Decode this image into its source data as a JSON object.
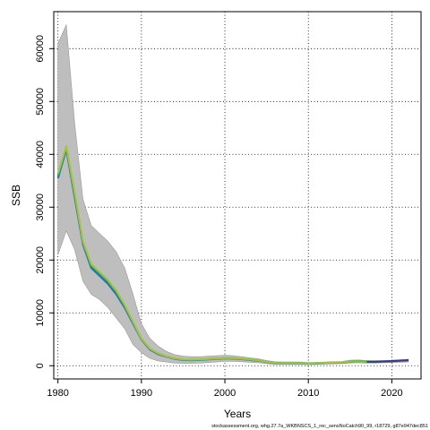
{
  "chart_data": {
    "type": "line",
    "title": "",
    "xlabel": "Years",
    "ylabel": "SSB",
    "xlim": [
      1979.5,
      2023.5
    ],
    "ylim": [
      -2500,
      67000
    ],
    "xticks": [
      1980,
      1990,
      2000,
      2010,
      2020
    ],
    "yticks": [
      0,
      10000,
      20000,
      30000,
      40000,
      50000,
      60000
    ],
    "grid": true,
    "grid_style": "dotted",
    "colors": {
      "band": "#bebebe",
      "band_edge": "#9a9a9a",
      "series": [
        "#1f6fb4",
        "#2ca36b",
        "#a8c23a",
        "#7fbf3a",
        "#3a3a8c"
      ],
      "axes": "#000000"
    },
    "band": {
      "name": "",
      "x": [
        1980,
        1981,
        1982,
        1983,
        1984,
        1985,
        1986,
        1987,
        1988,
        1989,
        1990,
        1991,
        1992,
        1993,
        1994,
        1995,
        1996,
        1997,
        1998,
        1999,
        2000,
        2001,
        2002,
        2003,
        2004,
        2005,
        2006,
        2007,
        2008,
        2009,
        2010,
        2011,
        2012,
        2013,
        2014,
        2015,
        2016,
        2017,
        2018,
        2019,
        2020,
        2021,
        2022
      ],
      "upper": [
        61000,
        64500,
        46000,
        31500,
        26500,
        25000,
        23500,
        21500,
        18500,
        13500,
        8000,
        5200,
        3700,
        2700,
        2100,
        1800,
        1700,
        1700,
        1800,
        1900,
        2000,
        1900,
        1700,
        1500,
        1300,
        1000,
        750,
        700,
        700,
        700,
        600,
        650,
        700,
        750,
        800,
        1050,
        1100,
        1000,
        950,
        1000,
        1050,
        1150,
        1250
      ],
      "lower": [
        21000,
        25500,
        22000,
        16000,
        13500,
        12500,
        11000,
        9000,
        7000,
        4000,
        2500,
        1400,
        900,
        700,
        500,
        450,
        450,
        500,
        600,
        700,
        800,
        800,
        750,
        650,
        550,
        400,
        250,
        250,
        250,
        250,
        200,
        250,
        300,
        350,
        400,
        500,
        550,
        500,
        500,
        550,
        600,
        650,
        700
      ]
    },
    "series": [
      {
        "name": "",
        "x": [
          1980,
          1981,
          1982,
          1983,
          1984,
          1985,
          1986,
          1987,
          1988,
          1989,
          1990,
          1991,
          1992,
          1993,
          1994,
          1995,
          1996,
          1997,
          1998,
          1999,
          2000,
          2001,
          2002,
          2003,
          2004,
          2005,
          2006,
          2007,
          2008,
          2009,
          2010,
          2011,
          2012,
          2013,
          2014,
          2015,
          2016,
          2017
        ],
        "values": [
          35500,
          41000,
          32000,
          23000,
          18500,
          17000,
          15500,
          13500,
          11000,
          8000,
          5000,
          3100,
          2200,
          1700,
          1300,
          1100,
          1050,
          1100,
          1200,
          1300,
          1400,
          1350,
          1250,
          1100,
          950,
          700,
          500,
          480,
          470,
          460,
          400,
          450,
          520,
          560,
          600,
          780,
          850,
          750
        ]
      },
      {
        "name": "",
        "x": [
          1980,
          1981,
          1982,
          1983,
          1984,
          1985,
          1986,
          1987,
          1988,
          1989,
          1990,
          1991,
          1992,
          1993,
          1994,
          1995,
          1996,
          1997,
          1998,
          1999,
          2000,
          2001,
          2002,
          2003,
          2004,
          2005,
          2006,
          2007,
          2008,
          2009,
          2010,
          2011,
          2012,
          2013,
          2014,
          2015,
          2016,
          2017,
          2018
        ],
        "values": [
          36000,
          41300,
          32500,
          23300,
          18900,
          17400,
          15900,
          13900,
          11300,
          8200,
          5100,
          3200,
          2300,
          1750,
          1350,
          1150,
          1100,
          1150,
          1250,
          1350,
          1450,
          1400,
          1300,
          1150,
          1000,
          730,
          520,
          500,
          490,
          480,
          420,
          470,
          540,
          580,
          620,
          800,
          870,
          770,
          740
        ]
      },
      {
        "name": "",
        "x": [
          1980,
          1981,
          1982,
          1983,
          1984,
          1985,
          1986,
          1987,
          1988,
          1989,
          1990,
          1991,
          1992,
          1993,
          1994,
          1995,
          1996,
          1997,
          1998,
          1999,
          2000,
          2001,
          2002,
          2003,
          2004,
          2005,
          2006,
          2007,
          2008,
          2009,
          2010,
          2011,
          2012,
          2013,
          2014,
          2015,
          2016
        ],
        "values": [
          36300,
          41500,
          32800,
          23500,
          19200,
          17700,
          16200,
          14200,
          11500,
          8300,
          5150,
          3250,
          2350,
          1780,
          1380,
          1170,
          1120,
          1170,
          1270,
          1370,
          1470,
          1420,
          1320,
          1170,
          1020,
          740,
          530,
          510,
          500,
          490,
          430,
          480,
          550,
          590,
          630,
          810,
          880
        ]
      },
      {
        "name": "",
        "x": [
          2015,
          2016,
          2017,
          2018,
          2019,
          2020
        ],
        "values": [
          790,
          860,
          760,
          730,
          780,
          850
        ]
      },
      {
        "name": "",
        "x": [
          2017,
          2018,
          2019,
          2020,
          2021,
          2022
        ],
        "values": [
          760,
          750,
          800,
          880,
          950,
          1050
        ]
      }
    ],
    "footnote": "stockassessment.org, whg.27.7a_WKBNSCS_1_rec_sensNoCatch90_99, r18729, g87e947dec851"
  }
}
